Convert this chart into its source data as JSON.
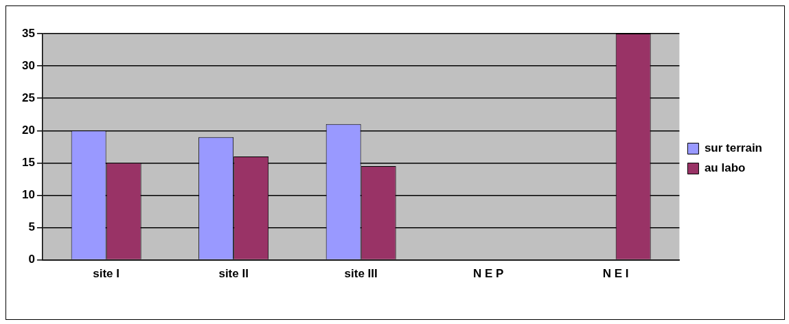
{
  "chart_data": {
    "type": "bar",
    "categories": [
      "site I",
      "site II",
      "site III",
      "N E P",
      "N E I"
    ],
    "series": [
      {
        "name": "sur terrain",
        "color": "#9999ff",
        "values": [
          20,
          19,
          21,
          0,
          0
        ]
      },
      {
        "name": "au labo",
        "color": "#993366",
        "values": [
          15,
          16,
          14.5,
          0,
          35
        ]
      }
    ],
    "ylim": [
      0,
      35
    ],
    "yticks": [
      0,
      5,
      10,
      15,
      20,
      25,
      30,
      35
    ],
    "grid": "y",
    "legend": "right"
  }
}
